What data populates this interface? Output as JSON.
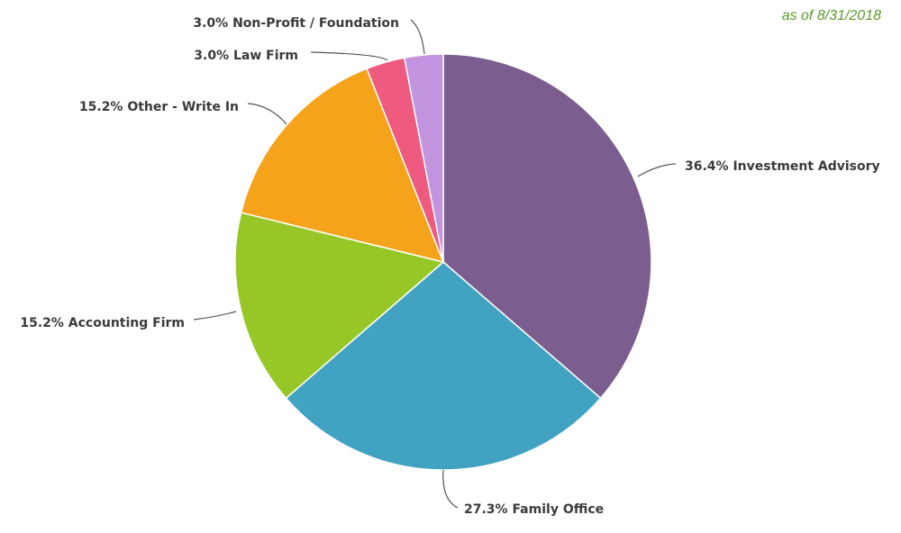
{
  "note": "as of 8/31/2018",
  "chart_data": {
    "type": "pie",
    "title": "",
    "start_angle_deg": 0,
    "direction": "clockwise",
    "slices": [
      {
        "label": "36.4% Investment Advisory",
        "category": "Investment Advisory",
        "value": 36.4,
        "color": "#7b5e8f"
      },
      {
        "label": "27.3% Family Office",
        "category": "Family Office",
        "value": 27.3,
        "color": "#41a2c2"
      },
      {
        "label": "15.2% Accounting Firm",
        "category": "Accounting Firm",
        "value": 15.2,
        "color": "#97c726"
      },
      {
        "label": "15.2% Other - Write In",
        "category": "Other - Write In",
        "value": 15.2,
        "color": "#f4a31a"
      },
      {
        "label": "3.0% Law Firm",
        "category": "Law Firm",
        "value": 3.0,
        "color": "#ee5a80"
      },
      {
        "label": "3.0% Non-Profit / Foundation",
        "category": "Non-Profit / Foundation",
        "value": 3.0,
        "color": "#c293de"
      }
    ]
  }
}
